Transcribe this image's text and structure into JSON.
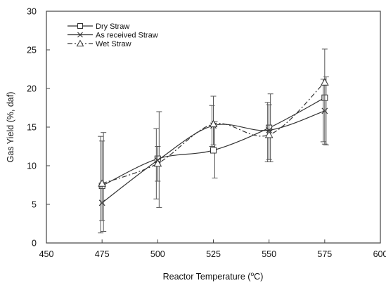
{
  "chart_data": {
    "type": "line",
    "title": "",
    "xlabel": "Reactor Temperature (°C)",
    "xlabel_parts": {
      "before": "Reactor Temperature (",
      "sup": "o",
      "after": "C)"
    },
    "ylabel": "Gas Yield (%, daf)",
    "xlim": [
      450,
      600
    ],
    "ylim": [
      0,
      30
    ],
    "xticks": [
      450,
      475,
      500,
      525,
      550,
      575,
      600
    ],
    "yticks": [
      0,
      5,
      10,
      15,
      20,
      25,
      30
    ],
    "grid": false,
    "legend_position": "top-left",
    "x": [
      475,
      500,
      525,
      550,
      575
    ],
    "series": [
      {
        "name": "Dry Straw",
        "marker": "square",
        "dash": "solid",
        "color": "#333333",
        "values": [
          7.4,
          10.9,
          12.0,
          14.9,
          18.8
        ],
        "error_low": [
          1.5,
          4.6,
          8.4,
          10.5,
          12.7
        ],
        "error_high": [
          14.3,
          17.0,
          15.7,
          19.3,
          21.5
        ]
      },
      {
        "name": "As received Straw",
        "marker": "x",
        "dash": "solid",
        "color": "#333333",
        "values": [
          5.2,
          10.7,
          15.2,
          14.6,
          17.1
        ],
        "error_low": [
          1.3,
          5.7,
          12.5,
          10.5,
          13.1
        ],
        "error_high": [
          13.8,
          14.8,
          17.8,
          18.2,
          21.2
        ]
      },
      {
        "name": "Wet Straw",
        "marker": "triangle",
        "dash": "dashdot",
        "color": "#333333",
        "values": [
          7.7,
          10.3,
          15.4,
          14.0,
          20.8
        ],
        "error_low": [
          2.9,
          8.0,
          12.7,
          10.8,
          12.8
        ],
        "error_high": [
          13.2,
          12.5,
          19.0,
          17.9,
          25.1
        ]
      }
    ]
  }
}
